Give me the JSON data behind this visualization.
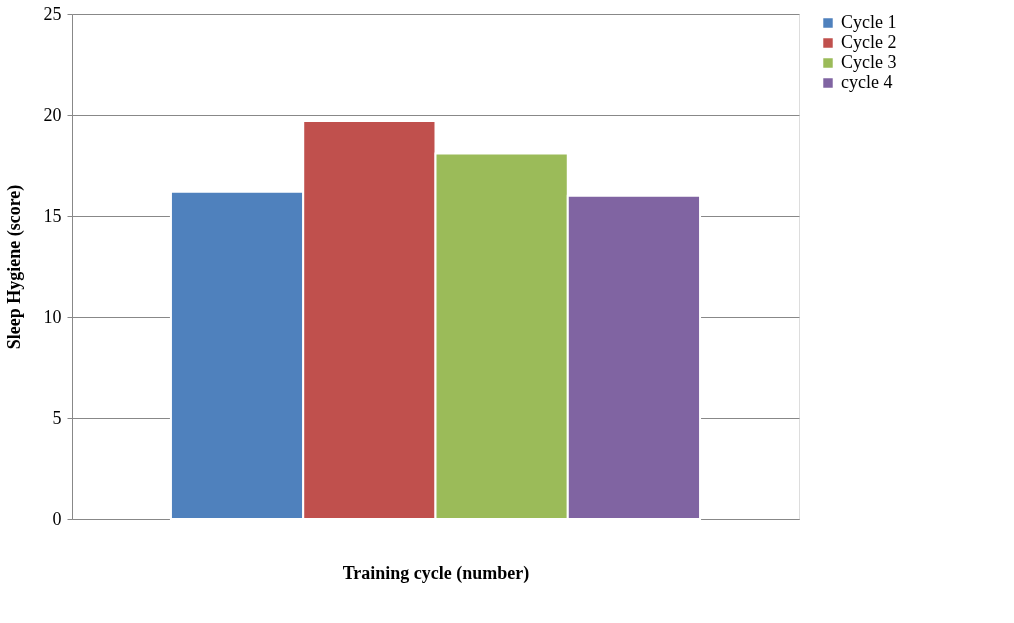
{
  "chart_data": {
    "type": "bar",
    "xlabel": "Training cycle (number)",
    "ylabel": "Sleep Hygiene (score)",
    "categories": [
      null
    ],
    "series": [
      {
        "name": "Cycle 1",
        "color": "#4f81bd",
        "values": [
          16.2
        ]
      },
      {
        "name": "Cycle 2",
        "color": "#c0504d",
        "values": [
          19.7
        ]
      },
      {
        "name": "Cycle 3",
        "color": "#9bbb59",
        "values": [
          18.1
        ]
      },
      {
        "name": "cycle 4",
        "color": "#8064a2",
        "values": [
          16.0
        ]
      }
    ],
    "ylim": [
      0,
      25
    ],
    "yticks": [
      0,
      5,
      10,
      15,
      20,
      25
    ],
    "grid": "y",
    "legend": "right"
  }
}
